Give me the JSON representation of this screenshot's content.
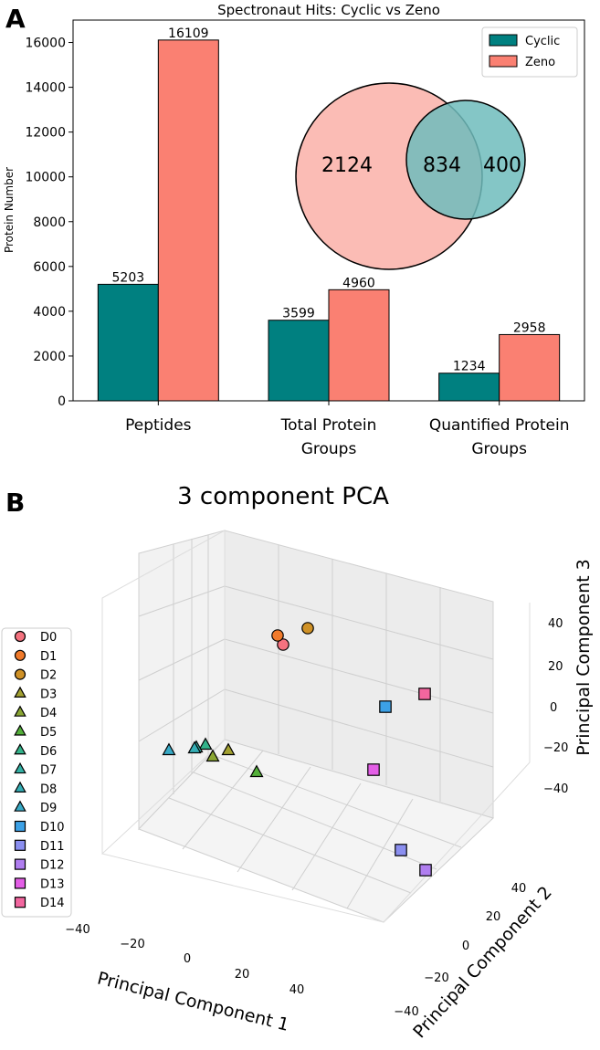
{
  "panel_a": {
    "label": "A",
    "chart_data": {
      "type": "bar",
      "title": "Spectronaut Hits: Cyclic vs Zeno",
      "xlabel": "",
      "ylabel": "Protein Number",
      "ylim": [
        0,
        17000
      ],
      "yticks": [
        0,
        2000,
        4000,
        6000,
        8000,
        10000,
        12000,
        14000,
        16000
      ],
      "categories": [
        [
          "Peptides"
        ],
        [
          "Total Protein",
          "Groups"
        ],
        [
          "Quantified Protein",
          "Groups"
        ]
      ],
      "series": [
        {
          "name": "Cyclic",
          "color": "#008080",
          "values": [
            5203,
            3599,
            1234
          ]
        },
        {
          "name": "Zeno",
          "color": "#fa8072",
          "values": [
            16109,
            4960,
            2958
          ]
        }
      ],
      "legend": "top-right",
      "venn": {
        "left_only": "2124",
        "overlap": "834",
        "right_only": "400",
        "left_color": "#fbbcb5",
        "right_color": "#6fbcbc",
        "overlap_color": "#5f8f8a"
      }
    }
  },
  "panel_b": {
    "label": "B",
    "chart_data": {
      "type": "scatter3d",
      "title": "3 component PCA",
      "xlabel": "Principal Component 1",
      "ylabel": "Principal Component 2",
      "zlabel": "Principal Component 3",
      "xticks": [
        "−40",
        "−20",
        "0",
        "20",
        "40"
      ],
      "yticks": [
        "−40",
        "−20",
        "0",
        "20",
        "40"
      ],
      "zticks": [
        "40",
        "20",
        "0",
        "−20",
        "−40"
      ],
      "legend": "left",
      "points": [
        {
          "name": "D0",
          "marker": "circle",
          "color": "#f4727f"
        },
        {
          "name": "D1",
          "marker": "circle",
          "color": "#f07a2b"
        },
        {
          "name": "D2",
          "marker": "circle",
          "color": "#cf9126"
        },
        {
          "name": "D3",
          "marker": "triangle",
          "color": "#a3a131"
        },
        {
          "name": "D4",
          "marker": "triangle",
          "color": "#8aa633"
        },
        {
          "name": "D5",
          "marker": "triangle",
          "color": "#54b03a"
        },
        {
          "name": "D6",
          "marker": "triangle",
          "color": "#33b38a"
        },
        {
          "name": "D7",
          "marker": "triangle",
          "color": "#33b0a4"
        },
        {
          "name": "D8",
          "marker": "triangle",
          "color": "#35aeb5"
        },
        {
          "name": "D9",
          "marker": "triangle",
          "color": "#38aac6"
        },
        {
          "name": "D10",
          "marker": "square",
          "color": "#3ca1e6"
        },
        {
          "name": "D11",
          "marker": "square",
          "color": "#8b8ff0"
        },
        {
          "name": "D12",
          "marker": "square",
          "color": "#b07ef0"
        },
        {
          "name": "D13",
          "marker": "square",
          "color": "#e35ee6"
        },
        {
          "name": "D14",
          "marker": "square",
          "color": "#f2669f"
        }
      ]
    }
  }
}
